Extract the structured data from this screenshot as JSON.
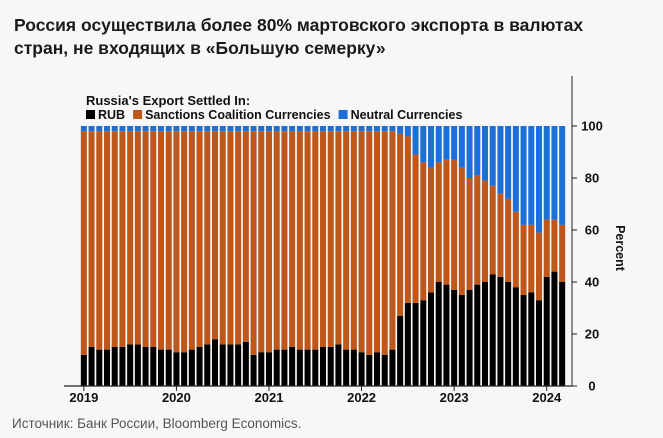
{
  "headline": {
    "line1": "Россия осуществила более 80% мартовского экспорта в валютах",
    "line2": "стран, не входящих в «Большую семерку»"
  },
  "source": "Источник: Банк России, Bloomberg Economics.",
  "chart_data": {
    "type": "bar",
    "stacked": true,
    "title": "Russia's Export Settled In:",
    "xlabel": "",
    "ylabel": "Percent",
    "ylim": [
      0,
      100
    ],
    "yticks": [
      0,
      20,
      40,
      60,
      80,
      100
    ],
    "year_labels": [
      "2019",
      "2020",
      "2021",
      "2022",
      "2023",
      "2024"
    ],
    "legend_position": "top-left",
    "grid": false,
    "colors": {
      "RUB": "#000000",
      "Sanctions Coalition Currencies": "#c0571a",
      "Neutral Currencies": "#1c6fd6"
    },
    "periods": [
      "2019-01",
      "2019-02",
      "2019-03",
      "2019-04",
      "2019-05",
      "2019-06",
      "2019-07",
      "2019-08",
      "2019-09",
      "2019-10",
      "2019-11",
      "2019-12",
      "2020-01",
      "2020-02",
      "2020-03",
      "2020-04",
      "2020-05",
      "2020-06",
      "2020-07",
      "2020-08",
      "2020-09",
      "2020-10",
      "2020-11",
      "2020-12",
      "2021-01",
      "2021-02",
      "2021-03",
      "2021-04",
      "2021-05",
      "2021-06",
      "2021-07",
      "2021-08",
      "2021-09",
      "2021-10",
      "2021-11",
      "2021-12",
      "2022-01",
      "2022-02",
      "2022-03",
      "2022-04",
      "2022-05",
      "2022-06",
      "2022-07",
      "2022-08",
      "2022-09",
      "2022-10",
      "2022-11",
      "2022-12",
      "2023-01",
      "2023-02",
      "2023-03",
      "2023-04",
      "2023-05",
      "2023-06",
      "2023-07",
      "2023-08",
      "2023-09",
      "2023-10",
      "2023-11",
      "2023-12",
      "2024-01",
      "2024-02",
      "2024-03"
    ],
    "series": [
      {
        "name": "RUB",
        "values": [
          12,
          15,
          14,
          14,
          15,
          15,
          16,
          16,
          15,
          15,
          14,
          14,
          13,
          13,
          14,
          15,
          16,
          18,
          16,
          16,
          16,
          17,
          12,
          13,
          13,
          14,
          14,
          15,
          14,
          14,
          14,
          15,
          15,
          16,
          14,
          14,
          13,
          12,
          13,
          12,
          14,
          27,
          32,
          32,
          33,
          36,
          40,
          39,
          37,
          35,
          37,
          39,
          40,
          43,
          42,
          40,
          38,
          35,
          36,
          33,
          42,
          44,
          40
        ]
      },
      {
        "name": "Sanctions Coalition Currencies",
        "values": [
          86,
          83,
          84,
          84,
          83,
          83,
          82,
          82,
          83,
          83,
          84,
          84,
          85,
          85,
          84,
          83,
          82,
          80,
          82,
          82,
          82,
          81,
          86,
          85,
          85,
          84,
          84,
          83,
          84,
          84,
          84,
          83,
          83,
          82,
          84,
          84,
          85,
          86,
          85,
          86,
          84,
          70,
          64,
          57,
          53,
          48,
          46,
          48,
          50,
          49,
          43,
          42,
          39,
          34,
          32,
          32,
          29,
          27,
          26,
          26,
          22,
          20,
          22
        ]
      },
      {
        "name": "Neutral Currencies",
        "values": [
          2,
          2,
          2,
          2,
          2,
          2,
          2,
          2,
          2,
          2,
          2,
          2,
          2,
          2,
          2,
          2,
          2,
          2,
          2,
          2,
          2,
          2,
          2,
          2,
          2,
          2,
          2,
          2,
          2,
          2,
          2,
          2,
          2,
          2,
          2,
          2,
          2,
          2,
          2,
          2,
          2,
          3,
          4,
          11,
          14,
          16,
          14,
          13,
          13,
          16,
          20,
          19,
          21,
          23,
          26,
          28,
          33,
          38,
          38,
          41,
          36,
          36,
          38
        ]
      }
    ]
  }
}
